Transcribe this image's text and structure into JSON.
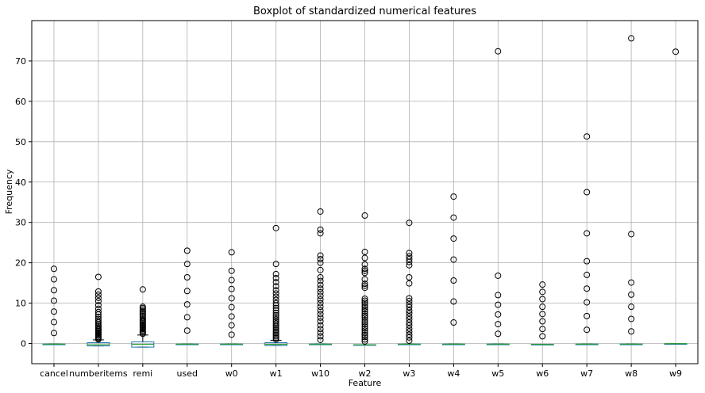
{
  "chart_data": {
    "type": "boxplot",
    "title": "Boxplot of standardized numerical features",
    "xlabel": "Feature",
    "ylabel": "Frequency",
    "ylim": [
      -5,
      80
    ],
    "yticks": [
      0,
      10,
      20,
      30,
      40,
      50,
      60,
      70
    ],
    "grid": true,
    "colors": {
      "box": "#1f77b4",
      "median": "#2ca02c",
      "whisker": "#000000",
      "outlier": "#000000",
      "grid": "#b0b0b0"
    },
    "categories": [
      "cancel",
      "numberitems",
      "remi",
      "used",
      "w0",
      "w1",
      "w10",
      "w2",
      "w3",
      "w4",
      "w5",
      "w6",
      "w7",
      "w8",
      "w9"
    ],
    "boxes": [
      {
        "q1": -0.15,
        "median": -0.15,
        "q3": -0.15,
        "whislo": -0.15,
        "whishi": -0.15,
        "fliers": [
          2.6,
          5.3,
          7.9,
          10.6,
          13.2,
          15.9,
          18.5
        ]
      },
      {
        "q1": -0.6,
        "median": -0.3,
        "q3": 0.2,
        "whislo": -0.6,
        "whishi": 0.9,
        "fliers": [
          1.0,
          1.3,
          1.6,
          1.9,
          2.2,
          2.5,
          2.8,
          3.1,
          3.4,
          3.7,
          4.0,
          4.4,
          4.8,
          5.2,
          5.6,
          6.1,
          6.6,
          7.2,
          7.8,
          8.6,
          9.5,
          10.5,
          11.3,
          12.1,
          12.9,
          16.5
        ]
      },
      {
        "q1": -0.9,
        "median": -0.2,
        "q3": 0.4,
        "whislo": -0.9,
        "whishi": 2.1,
        "fliers": [
          2.4,
          2.7,
          3.0,
          3.3,
          3.6,
          3.9,
          4.2,
          4.5,
          4.8,
          5.1,
          5.4,
          5.7,
          6.0,
          6.4,
          6.8,
          7.2,
          7.6,
          8.0,
          8.4,
          8.8,
          9.1,
          13.4
        ]
      },
      {
        "q1": -0.15,
        "median": -0.15,
        "q3": -0.15,
        "whislo": -0.15,
        "whishi": -0.15,
        "fliers": [
          3.2,
          6.5,
          9.7,
          13.0,
          16.4,
          19.7,
          23.0
        ]
      },
      {
        "q1": -0.15,
        "median": -0.15,
        "q3": -0.15,
        "whislo": -0.15,
        "whishi": -0.15,
        "fliers": [
          2.2,
          4.5,
          6.7,
          9.0,
          11.2,
          13.5,
          15.7,
          18.0,
          22.6
        ]
      },
      {
        "q1": -0.5,
        "median": -0.2,
        "q3": 0.2,
        "whislo": -0.5,
        "whishi": 0.8,
        "fliers": [
          1.0,
          1.4,
          1.8,
          2.2,
          2.6,
          3.0,
          3.4,
          3.8,
          4.2,
          4.6,
          5.0,
          5.5,
          6.0,
          6.5,
          7.0,
          7.6,
          8.2,
          8.8,
          9.4,
          10.0,
          10.8,
          11.6,
          12.4,
          13.2,
          14.2,
          15.2,
          16.2,
          17.2,
          19.7,
          28.6
        ]
      },
      {
        "q1": -0.15,
        "median": -0.15,
        "q3": -0.15,
        "whislo": -0.15,
        "whishi": -0.15,
        "fliers": [
          0.9,
          1.8,
          2.7,
          3.6,
          4.5,
          5.5,
          6.4,
          7.3,
          8.2,
          9.1,
          10.0,
          10.9,
          11.8,
          12.7,
          13.6,
          14.5,
          15.5,
          16.4,
          18.2,
          20.0,
          20.9,
          21.8,
          27.3,
          28.2,
          32.7
        ]
      },
      {
        "q1": -0.3,
        "median": -0.3,
        "q3": -0.3,
        "whislo": -0.3,
        "whishi": -0.3,
        "fliers": [
          0.5,
          1.0,
          1.6,
          2.1,
          2.6,
          3.2,
          3.7,
          4.2,
          4.8,
          5.3,
          5.8,
          6.4,
          6.9,
          7.4,
          8.0,
          8.5,
          9.0,
          9.5,
          10.1,
          10.6,
          11.1,
          13.8,
          14.3,
          14.8,
          15.9,
          17.5,
          18.0,
          18.5,
          19.6,
          21.2,
          22.7,
          31.7
        ]
      },
      {
        "q1": -0.15,
        "median": -0.15,
        "q3": -0.15,
        "whislo": -0.15,
        "whishi": -0.15,
        "fliers": [
          0.7,
          1.5,
          2.2,
          3.0,
          3.7,
          4.5,
          5.2,
          6.0,
          6.7,
          7.5,
          8.2,
          9.0,
          9.7,
          10.5,
          11.2,
          14.9,
          16.4,
          19.4,
          20.2,
          20.9,
          21.6,
          22.4,
          29.9
        ]
      },
      {
        "q1": -0.15,
        "median": -0.15,
        "q3": -0.15,
        "whislo": -0.15,
        "whishi": -0.15,
        "fliers": [
          5.2,
          10.4,
          15.6,
          20.8,
          26.0,
          31.2,
          36.4
        ]
      },
      {
        "q1": -0.15,
        "median": -0.15,
        "q3": -0.15,
        "whislo": -0.15,
        "whishi": -0.15,
        "fliers": [
          2.4,
          4.8,
          7.2,
          9.6,
          12.0,
          16.8,
          72.4
        ]
      },
      {
        "q1": -0.2,
        "median": -0.2,
        "q3": -0.2,
        "whislo": -0.2,
        "whishi": -0.2,
        "fliers": [
          1.8,
          3.6,
          5.5,
          7.3,
          9.1,
          11.0,
          12.8,
          14.6
        ]
      },
      {
        "q1": -0.15,
        "median": -0.15,
        "q3": -0.15,
        "whislo": -0.15,
        "whishi": -0.15,
        "fliers": [
          3.4,
          6.8,
          10.2,
          13.6,
          17.0,
          20.4,
          27.3,
          37.5,
          51.3
        ]
      },
      {
        "q1": -0.15,
        "median": -0.15,
        "q3": -0.15,
        "whislo": -0.15,
        "whishi": -0.15,
        "fliers": [
          3.0,
          6.1,
          9.1,
          12.1,
          15.1,
          27.1,
          75.6
        ]
      },
      {
        "q1": -0.05,
        "median": -0.05,
        "q3": -0.05,
        "whislo": -0.05,
        "whishi": -0.05,
        "fliers": [
          72.3
        ]
      }
    ]
  }
}
